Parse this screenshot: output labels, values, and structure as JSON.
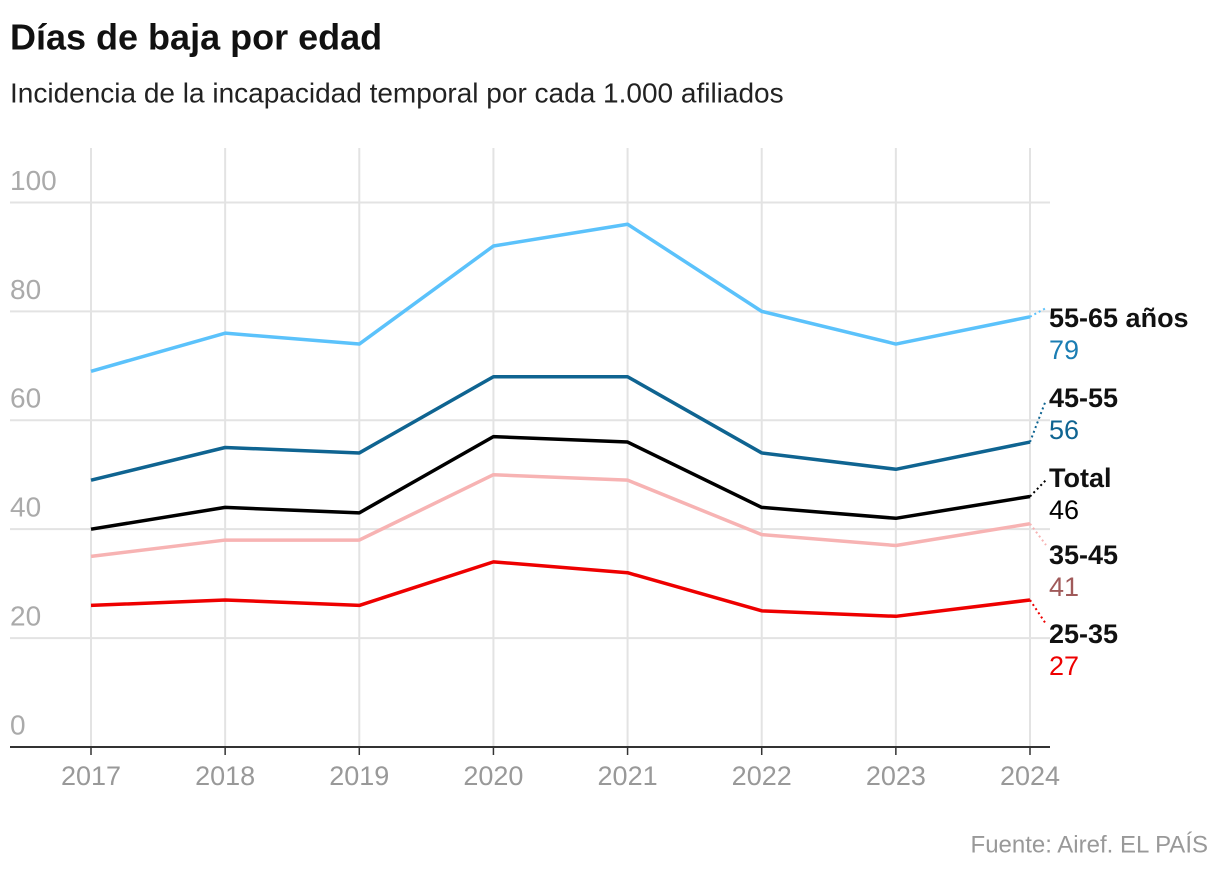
{
  "chart_data": {
    "type": "line",
    "title": "Días de baja por edad",
    "subtitle": "Incidencia de la incapacidad temporal por cada 1.000 afiliados",
    "source": "Fuente: Airef. EL PAÍS",
    "categories": [
      "2017",
      "2018",
      "2019",
      "2020",
      "2021",
      "2022",
      "2023",
      "2024"
    ],
    "ylim": [
      0,
      110
    ],
    "yticks": [
      0,
      20,
      40,
      60,
      80,
      100
    ],
    "grid": true,
    "series": [
      {
        "name": "55-65 años",
        "color": "#5bc2fb",
        "label_color": "#1a7db3",
        "values": [
          69,
          76,
          74,
          92,
          96,
          80,
          74,
          79
        ]
      },
      {
        "name": "45-55",
        "color": "#0f6491",
        "label_color": "#0f6491",
        "values": [
          49,
          55,
          54,
          68,
          68,
          54,
          51,
          56
        ]
      },
      {
        "name": "Total",
        "color": "#000000",
        "label_color": "#000000",
        "values": [
          40,
          44,
          43,
          57,
          56,
          44,
          42,
          46
        ]
      },
      {
        "name": "35-45",
        "color": "#f7b3b3",
        "label_color": "#a05a5a",
        "values": [
          35,
          38,
          38,
          50,
          49,
          39,
          37,
          41
        ]
      },
      {
        "name": "25-35",
        "color": "#ee0000",
        "label_color": "#ee0000",
        "values": [
          26,
          27,
          26,
          34,
          32,
          25,
          24,
          27
        ]
      }
    ]
  }
}
